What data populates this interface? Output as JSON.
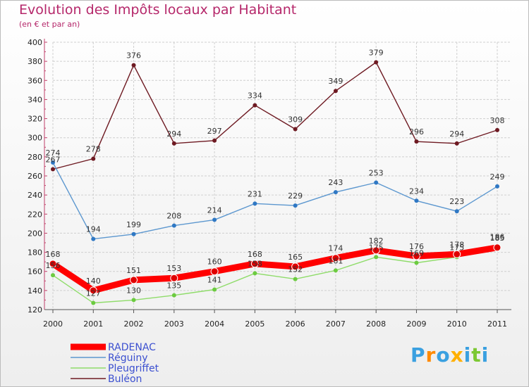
{
  "chart_data": {
    "type": "line",
    "title": "Evolution des Impôts locaux par Habitant",
    "subtitle": "(en € et par an)",
    "x": [
      "2000",
      "2001",
      "2002",
      "2003",
      "2004",
      "2005",
      "2006",
      "2007",
      "2008",
      "2009",
      "2010",
      "2011"
    ],
    "ylim": [
      120,
      400
    ],
    "yticks": [
      120,
      140,
      160,
      180,
      200,
      220,
      240,
      260,
      280,
      300,
      320,
      340,
      360,
      380,
      400
    ],
    "grid": true,
    "legend_position": "bottom-left",
    "series": [
      {
        "name": "Buléon",
        "color": "#6e1a22",
        "marker": "#6e1a22",
        "values": [
          267,
          278,
          376,
          294,
          297,
          334,
          309,
          349,
          379,
          296,
          294,
          308
        ],
        "labels": [
          "267",
          "278",
          "376",
          "294",
          "297",
          "334",
          "309",
          "349",
          "379",
          "296",
          "294",
          "308"
        ]
      },
      {
        "name": "Réguiny",
        "color": "#5c97cf",
        "marker": "#2f78c4",
        "values": [
          274,
          194,
          199,
          208,
          214,
          231,
          229,
          243,
          253,
          234,
          223,
          249
        ],
        "labels": [
          "274",
          "194",
          "199",
          "208",
          "214",
          "231",
          "229",
          "243",
          "253",
          "234",
          "223",
          "249"
        ]
      },
      {
        "name": "Pleugriffet",
        "color": "#8fdc6a",
        "marker": "#6ccb40",
        "values": [
          156,
          127,
          130,
          135,
          141,
          158,
          152,
          161,
          175,
          169,
          175,
          186
        ],
        "labels": [
          "156",
          "127",
          "130",
          "135",
          "141",
          "158",
          "152",
          "161",
          "175",
          "169",
          "175",
          "186"
        ]
      },
      {
        "name": "RADENAC",
        "color": "#ff0000",
        "marker": "#e00000",
        "values": [
          168,
          140,
          151,
          153,
          160,
          168,
          165,
          174,
          182,
          176,
          178,
          185
        ],
        "labels": [
          "168",
          "140",
          "151",
          "153",
          "160",
          "168",
          "165",
          "174",
          "182",
          "176",
          "178",
          "185"
        ]
      }
    ],
    "legend": [
      "RADENAC",
      "Réguiny",
      "Pleugriffet",
      "Buléon"
    ]
  },
  "branding": {
    "logo_letters": [
      "P",
      "r",
      "o",
      "x",
      "i",
      "t",
      "i"
    ],
    "logo_colors": [
      "#3aa0e0",
      "#ff8a00",
      "#3aa0e0",
      "#ffb000",
      "#3aa0e0",
      "#7cc832",
      "#3aa0e0"
    ]
  }
}
